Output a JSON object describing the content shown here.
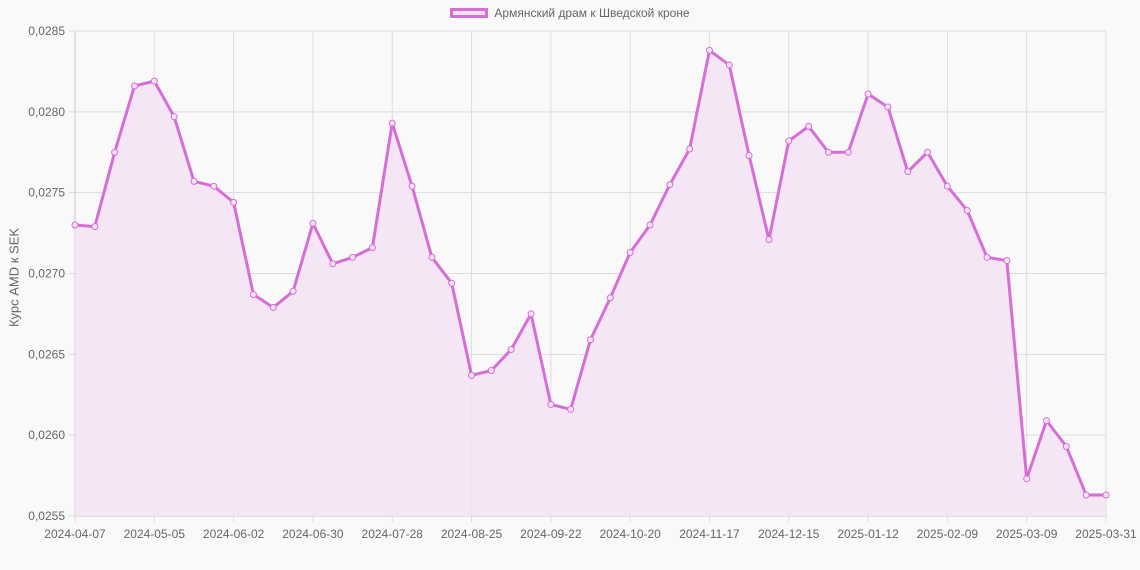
{
  "legend": {
    "label": "Армянский драм к Шведской кроне"
  },
  "y_axis_title": "Курс AMD к SEK",
  "colors": {
    "line": "#d56fd6",
    "fill": "#f5e3f5",
    "grid": "#dddddd",
    "text": "#666666",
    "background": "#f9f9f9"
  },
  "chart_data": {
    "type": "line",
    "title": "",
    "xlabel": "",
    "ylabel": "Курс AMD к SEK",
    "ylim": [
      0.0255,
      0.0285
    ],
    "y_ticks": [
      "0,0255",
      "0,0260",
      "0,0265",
      "0,0270",
      "0,0275",
      "0,0280",
      "0,0285"
    ],
    "x_tick_labels": [
      "2024-04-07",
      "2024-05-05",
      "2024-06-02",
      "2024-06-30",
      "2024-07-28",
      "2024-08-25",
      "2024-09-22",
      "2024-10-20",
      "2024-11-17",
      "2024-12-15",
      "2025-01-12",
      "2025-02-09",
      "2025-03-09",
      "2025-03-31"
    ],
    "legend_position": "top",
    "grid": true,
    "fill": true,
    "series": [
      {
        "name": "Армянский драм к Шведской кроне",
        "values": [
          0.0273,
          0.02729,
          0.02775,
          0.02816,
          0.02819,
          0.02797,
          0.02757,
          0.02754,
          0.02744,
          0.02687,
          0.02679,
          0.02689,
          0.02731,
          0.02706,
          0.0271,
          0.02716,
          0.02793,
          0.02754,
          0.0271,
          0.02694,
          0.02637,
          0.0264,
          0.02653,
          0.02675,
          0.02619,
          0.02616,
          0.02659,
          0.02685,
          0.02713,
          0.0273,
          0.02755,
          0.02777,
          0.02838,
          0.02829,
          0.02773,
          0.02721,
          0.02782,
          0.02791,
          0.02775,
          0.02775,
          0.02811,
          0.02803,
          0.02763,
          0.02775,
          0.02754,
          0.02739,
          0.0271,
          0.02708,
          0.02573,
          0.02609,
          0.02593,
          0.02563,
          0.02563
        ]
      }
    ]
  }
}
